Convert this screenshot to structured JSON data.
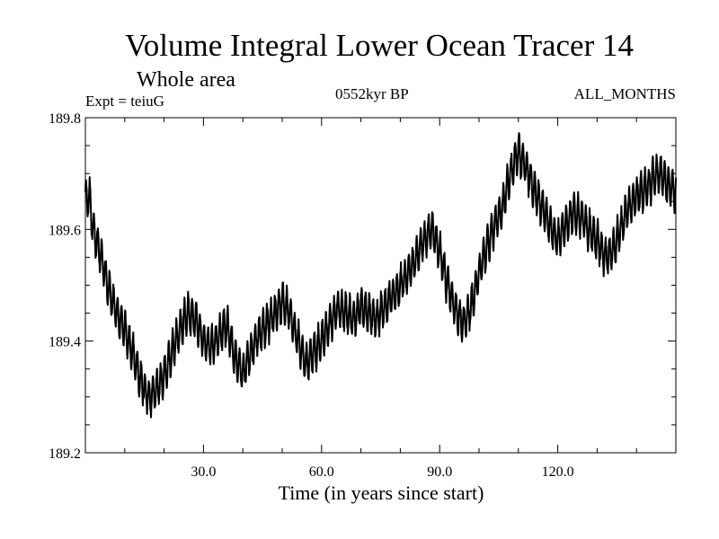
{
  "chart_data": {
    "type": "line",
    "title": "Volume Integral Lower Ocean Tracer 14",
    "subtitle": "Whole area",
    "left_label": "Expt = teiuG",
    "center_label": "0552kyr BP",
    "right_label": "ALL_MONTHS",
    "xlabel": "Time (in years since start)",
    "ylabel": "",
    "xlim": [
      0,
      150
    ],
    "ylim": [
      189.2,
      189.8
    ],
    "x_ticks": [
      {
        "value": 30,
        "label": "30.0"
      },
      {
        "value": 60,
        "label": "60.0"
      },
      {
        "value": 90,
        "label": "90.0"
      },
      {
        "value": 120,
        "label": "120.0"
      }
    ],
    "x_minor_step": 10,
    "y_ticks": [
      {
        "value": 189.2,
        "label": "189.2"
      },
      {
        "value": 189.4,
        "label": "189.4"
      },
      {
        "value": 189.6,
        "label": "189.6"
      },
      {
        "value": 189.8,
        "label": "189.8"
      }
    ],
    "y_minor_step": 0.05,
    "series_trend": [
      [
        0,
        189.65
      ],
      [
        1,
        189.66
      ],
      [
        2,
        189.6
      ],
      [
        4,
        189.55
      ],
      [
        6,
        189.49
      ],
      [
        8,
        189.45
      ],
      [
        10,
        189.42
      ],
      [
        12,
        189.38
      ],
      [
        14,
        189.33
      ],
      [
        16,
        189.3
      ],
      [
        18,
        189.31
      ],
      [
        20,
        189.34
      ],
      [
        22,
        189.38
      ],
      [
        24,
        189.42
      ],
      [
        26,
        189.45
      ],
      [
        28,
        189.44
      ],
      [
        30,
        189.4
      ],
      [
        32,
        189.39
      ],
      [
        34,
        189.41
      ],
      [
        36,
        189.43
      ],
      [
        38,
        189.37
      ],
      [
        40,
        189.34
      ],
      [
        42,
        189.38
      ],
      [
        44,
        189.41
      ],
      [
        46,
        189.43
      ],
      [
        48,
        189.45
      ],
      [
        50,
        189.47
      ],
      [
        52,
        189.45
      ],
      [
        54,
        189.4
      ],
      [
        56,
        189.36
      ],
      [
        58,
        189.38
      ],
      [
        60,
        189.4
      ],
      [
        62,
        189.43
      ],
      [
        64,
        189.46
      ],
      [
        66,
        189.45
      ],
      [
        68,
        189.44
      ],
      [
        70,
        189.46
      ],
      [
        72,
        189.45
      ],
      [
        74,
        189.44
      ],
      [
        76,
        189.46
      ],
      [
        78,
        189.48
      ],
      [
        80,
        189.5
      ],
      [
        82,
        189.52
      ],
      [
        84,
        189.55
      ],
      [
        86,
        189.58
      ],
      [
        88,
        189.6
      ],
      [
        90,
        189.56
      ],
      [
        92,
        189.5
      ],
      [
        94,
        189.46
      ],
      [
        96,
        189.43
      ],
      [
        98,
        189.46
      ],
      [
        100,
        189.52
      ],
      [
        102,
        189.57
      ],
      [
        104,
        189.61
      ],
      [
        106,
        189.64
      ],
      [
        108,
        189.7
      ],
      [
        110,
        189.74
      ],
      [
        112,
        189.71
      ],
      [
        114,
        189.67
      ],
      [
        116,
        189.64
      ],
      [
        118,
        189.61
      ],
      [
        120,
        189.58
      ],
      [
        122,
        189.61
      ],
      [
        124,
        189.63
      ],
      [
        126,
        189.62
      ],
      [
        128,
        189.6
      ],
      [
        130,
        189.58
      ],
      [
        132,
        189.55
      ],
      [
        134,
        189.56
      ],
      [
        136,
        189.6
      ],
      [
        138,
        189.64
      ],
      [
        140,
        189.66
      ],
      [
        142,
        189.67
      ],
      [
        144,
        189.69
      ],
      [
        146,
        189.7
      ],
      [
        148,
        189.68
      ],
      [
        150,
        189.67
      ]
    ],
    "oscillation_amplitude": 0.032,
    "samples_per_year": 12,
    "line_color": "#000000"
  }
}
